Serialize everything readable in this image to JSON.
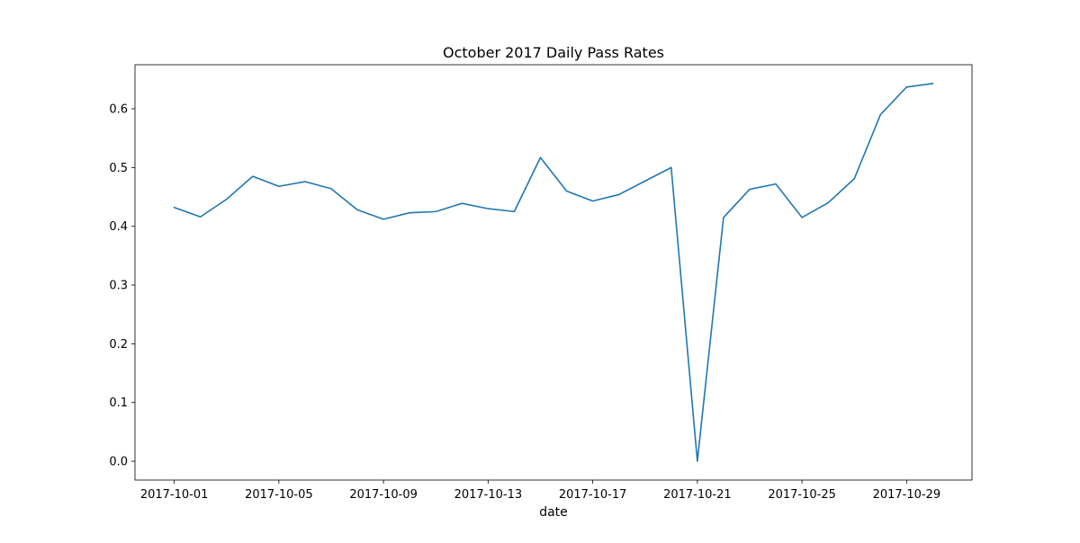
{
  "chart_data": {
    "type": "line",
    "title": "October 2017 Daily Pass Rates",
    "xlabel": "date",
    "ylabel": "",
    "x": [
      "2017-10-01",
      "2017-10-02",
      "2017-10-03",
      "2017-10-04",
      "2017-10-05",
      "2017-10-06",
      "2017-10-07",
      "2017-10-08",
      "2017-10-09",
      "2017-10-10",
      "2017-10-11",
      "2017-10-12",
      "2017-10-13",
      "2017-10-14",
      "2017-10-15",
      "2017-10-16",
      "2017-10-17",
      "2017-10-18",
      "2017-10-19",
      "2017-10-20",
      "2017-10-21",
      "2017-10-22",
      "2017-10-23",
      "2017-10-24",
      "2017-10-25",
      "2017-10-26",
      "2017-10-27",
      "2017-10-28",
      "2017-10-29",
      "2017-10-30"
    ],
    "series": [
      {
        "color": "#1f77b4",
        "values": [
          0.432,
          0.416,
          0.446,
          0.485,
          0.468,
          0.476,
          0.464,
          0.428,
          0.412,
          0.423,
          0.425,
          0.439,
          0.43,
          0.425,
          0.517,
          0.46,
          0.443,
          0.454,
          0.477,
          0.5,
          0.0,
          0.415,
          0.463,
          0.472,
          0.415,
          0.44,
          0.481,
          0.59,
          0.637,
          0.643
        ]
      }
    ],
    "xticks": [
      "2017-10-01",
      "2017-10-05",
      "2017-10-09",
      "2017-10-13",
      "2017-10-17",
      "2017-10-21",
      "2017-10-25",
      "2017-10-29"
    ],
    "yticks": [
      0.0,
      0.1,
      0.2,
      0.3,
      0.4,
      0.5,
      0.6
    ],
    "ytick_labels": [
      "0.0",
      "0.1",
      "0.2",
      "0.3",
      "0.4",
      "0.5",
      "0.6"
    ],
    "ylim": [
      -0.032,
      0.675
    ],
    "xlim": [
      "2017-09-29T12:00",
      "2017-10-31T12:00"
    ],
    "grid": false,
    "legend": false
  }
}
